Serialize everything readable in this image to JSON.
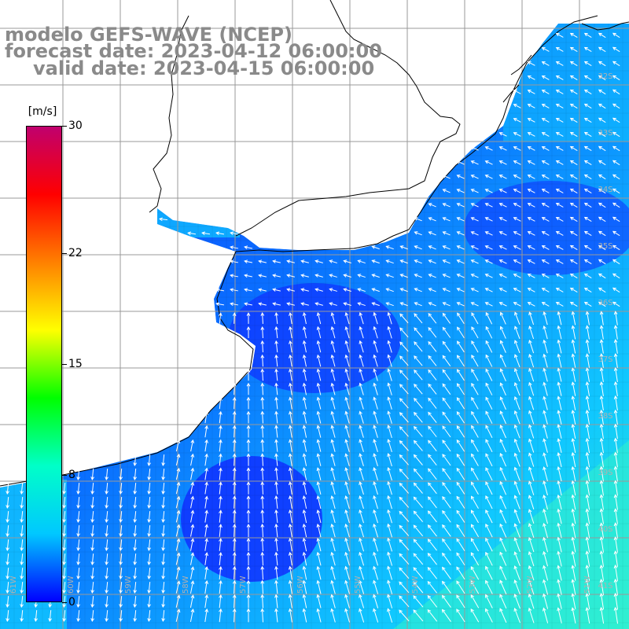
{
  "title": {
    "line1": "modelo GEFS-WAVE (NCEP)",
    "line2": "forecast date: 2023-04-12 06:00:00",
    "line3": "valid date: 2023-04-15 06:00:00"
  },
  "colorbar": {
    "unit": "[m/s]",
    "ticks": [
      "30",
      "22",
      "15",
      "8",
      "0"
    ],
    "tick_values": [
      30,
      22,
      15,
      8,
      0
    ],
    "colors": [
      "#0000ff",
      "#00c8ff",
      "#00ffc8",
      "#00ff00",
      "#ffff00",
      "#ff8000",
      "#ff0000",
      "#c0006e"
    ]
  },
  "map": {
    "lat_labels": [
      "32S",
      "33S",
      "34S",
      "35S",
      "36S",
      "37S",
      "38S",
      "39S",
      "40S",
      "41S"
    ],
    "lon_labels": [
      "61W",
      "60W",
      "59W",
      "58W",
      "57W",
      "56W",
      "55W",
      "54W",
      "53W",
      "52W",
      "51W"
    ],
    "wind_field_colors": {
      "low": "#1030ff",
      "mid": "#0a70ff",
      "high": "#10c8ff",
      "max": "#30f0d0"
    },
    "grid_color": "#999999",
    "coast_color": "#000000",
    "arrow_color": "#ffffff"
  }
}
